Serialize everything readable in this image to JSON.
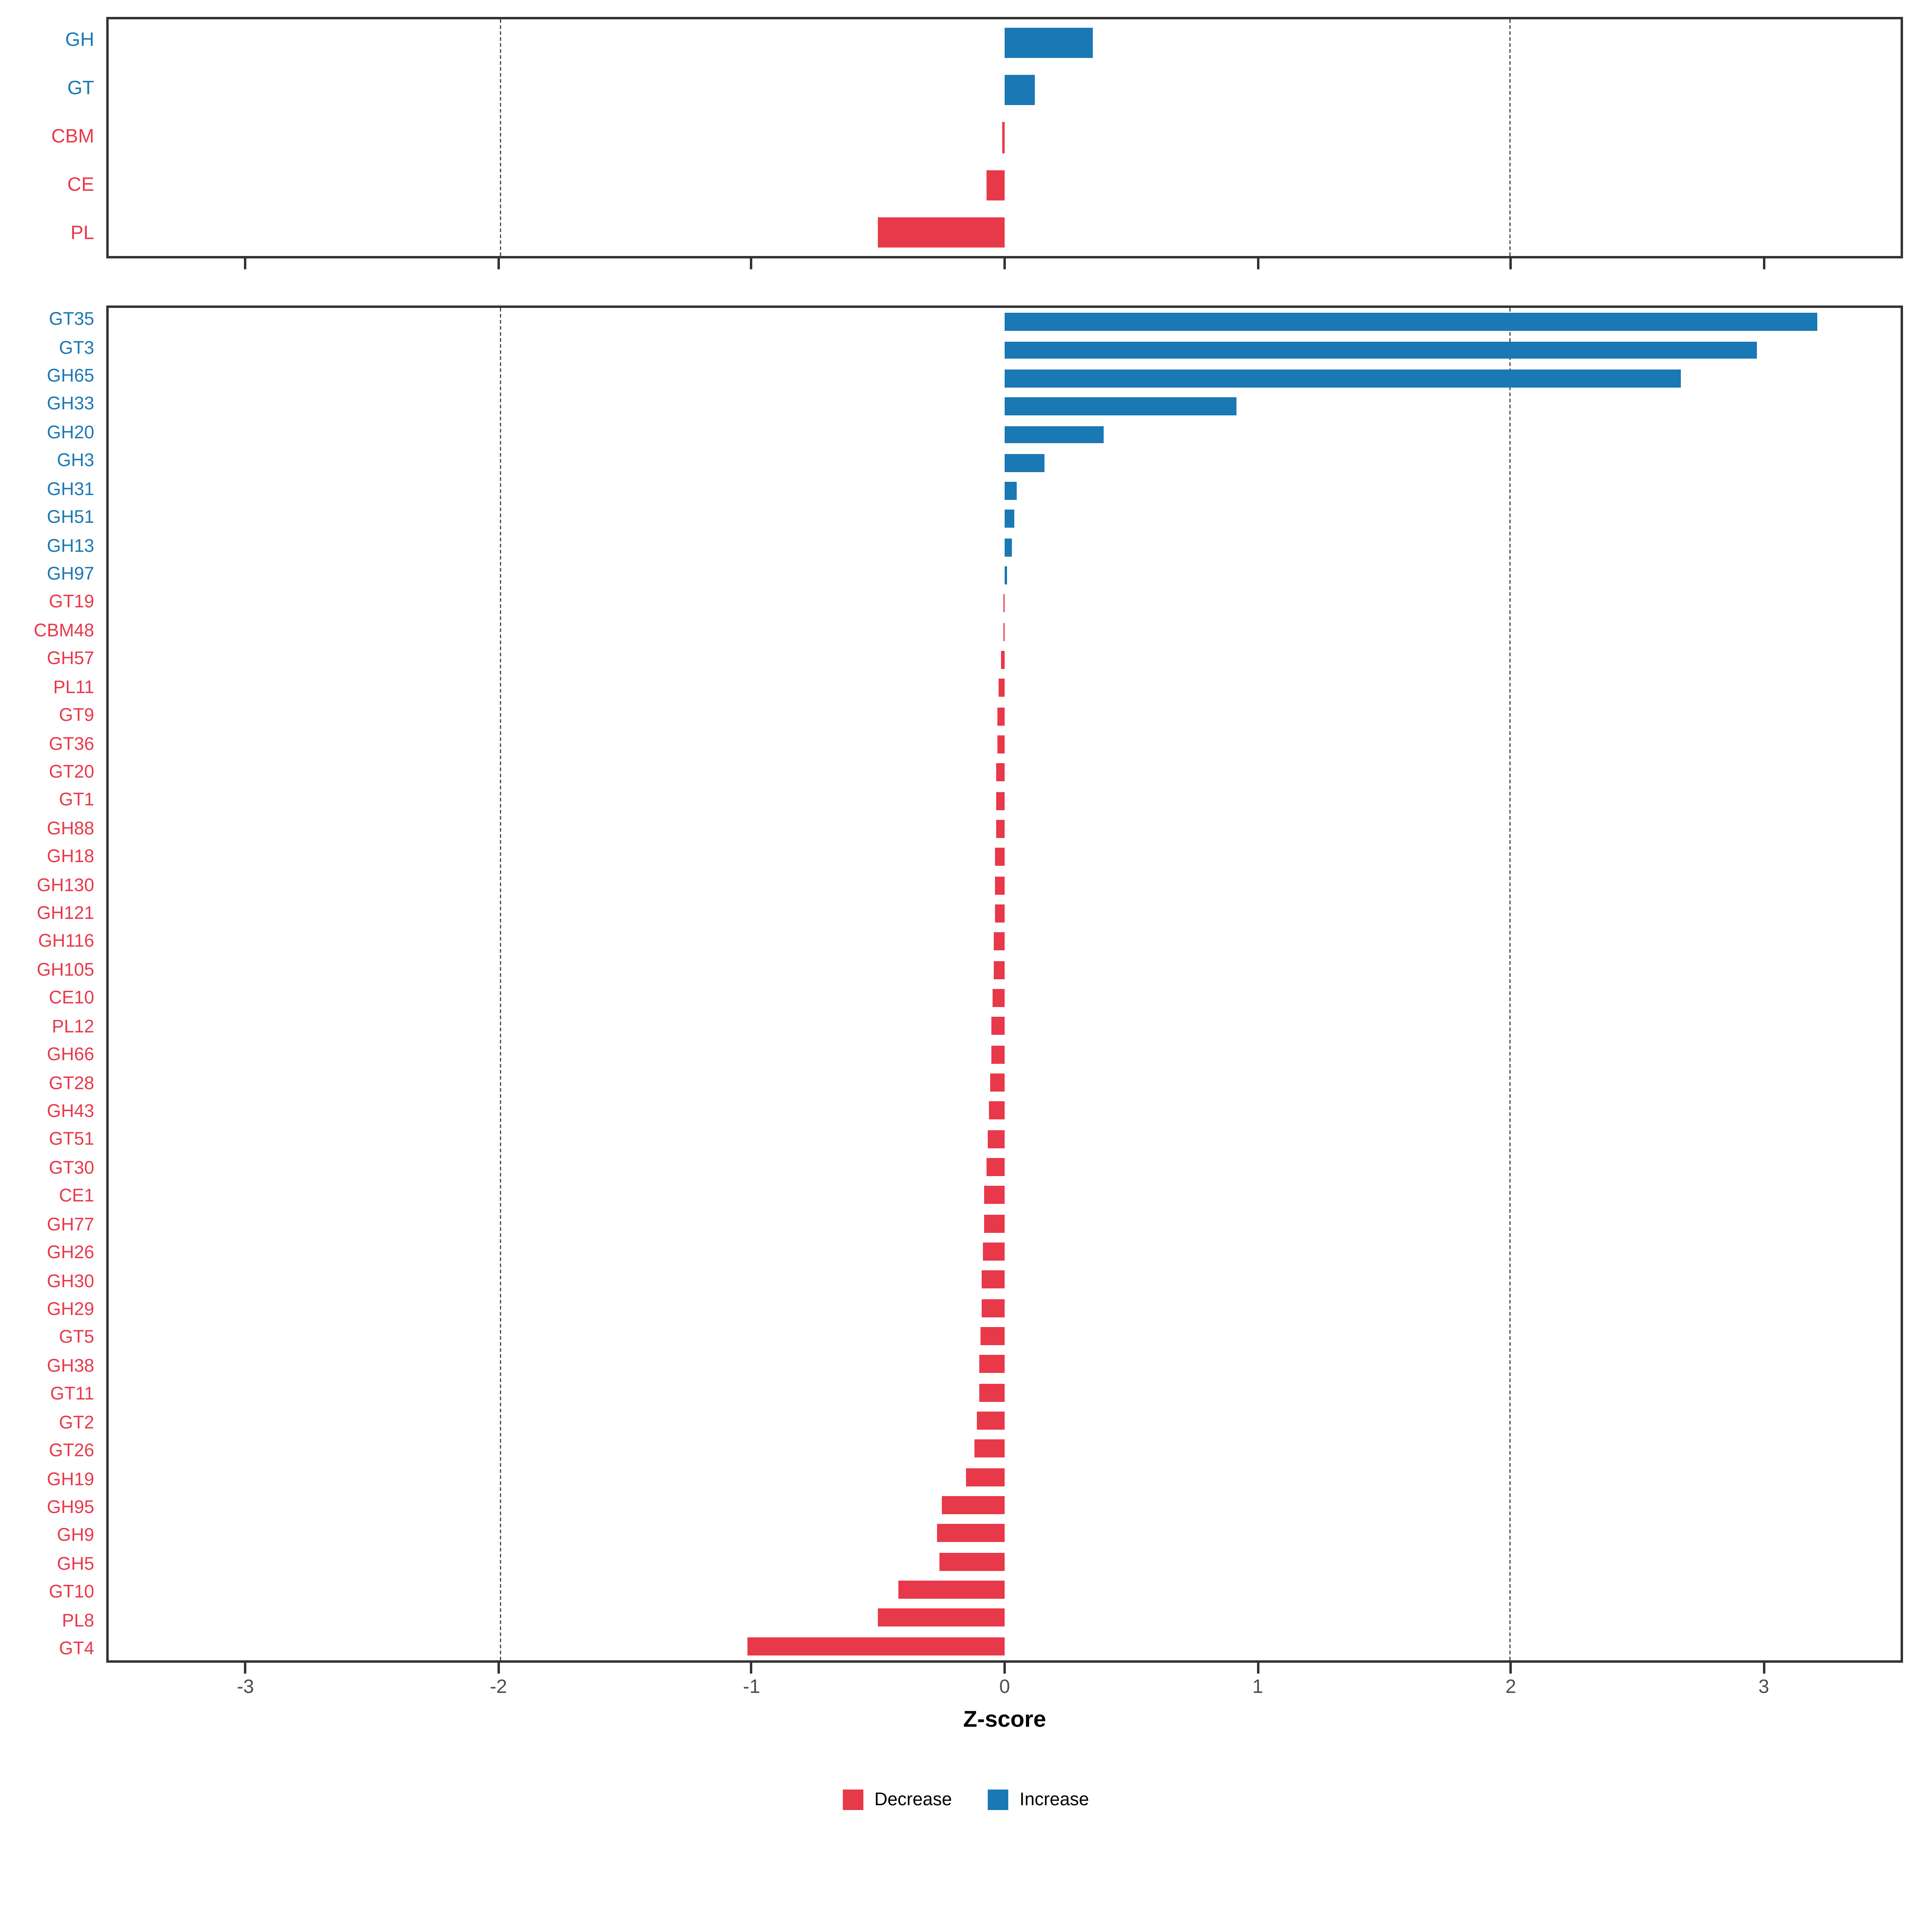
{
  "colors": {
    "decrease": "#e8394a",
    "increase": "#1a78b4",
    "axis_text": "#4d4d4d",
    "panel_border": "#333333"
  },
  "axis": {
    "xlabel": "Z-score",
    "min": -3.55,
    "max": 3.55,
    "ticks": [
      -3,
      -2,
      -1,
      0,
      1,
      2,
      3
    ],
    "gridlines": [
      -2,
      2
    ]
  },
  "legend": {
    "items": [
      {
        "label": "Decrease",
        "color": "#e8394a"
      },
      {
        "label": "Increase",
        "color": "#1a78b4"
      }
    ]
  },
  "chart_data": [
    {
      "type": "bar",
      "orientation": "horizontal",
      "title": "",
      "panel": "cazyme-class",
      "xlabel": "Z-score",
      "xlim": [
        -3.55,
        3.55
      ],
      "grid": "dashed at -2 and 2",
      "legend_position": "bottom",
      "items": [
        {
          "label": "GH",
          "value": 0.35
        },
        {
          "label": "GT",
          "value": 0.12
        },
        {
          "label": "CBM",
          "value": -0.01
        },
        {
          "label": "CE",
          "value": -0.07
        },
        {
          "label": "PL",
          "value": -0.5
        }
      ]
    },
    {
      "type": "bar",
      "orientation": "horizontal",
      "title": "",
      "panel": "cazyme-family",
      "xlabel": "Z-score",
      "xlim": [
        -3.55,
        3.55
      ],
      "grid": "dashed at -2 and 2",
      "legend_position": "bottom",
      "items": [
        {
          "label": "GT35",
          "value": 3.22
        },
        {
          "label": "GT3",
          "value": 2.98
        },
        {
          "label": "GH65",
          "value": 2.68
        },
        {
          "label": "GH33",
          "value": 0.92
        },
        {
          "label": "GH20",
          "value": 0.39
        },
        {
          "label": "GH3",
          "value": 0.16
        },
        {
          "label": "GH31",
          "value": 0.05
        },
        {
          "label": "GH51",
          "value": 0.04
        },
        {
          "label": "GH13",
          "value": 0.03
        },
        {
          "label": "GH97",
          "value": 0.01
        },
        {
          "label": "GT19",
          "value": -0.003
        },
        {
          "label": "CBM48",
          "value": -0.006
        },
        {
          "label": "GH57",
          "value": -0.015
        },
        {
          "label": "PL11",
          "value": -0.025
        },
        {
          "label": "GT9",
          "value": -0.028
        },
        {
          "label": "GT36",
          "value": -0.03
        },
        {
          "label": "GT20",
          "value": -0.032
        },
        {
          "label": "GT1",
          "value": -0.035
        },
        {
          "label": "GH88",
          "value": -0.035
        },
        {
          "label": "GH18",
          "value": -0.038
        },
        {
          "label": "GH130",
          "value": -0.04
        },
        {
          "label": "GH121",
          "value": -0.04
        },
        {
          "label": "GH116",
          "value": -0.042
        },
        {
          "label": "GH105",
          "value": -0.045
        },
        {
          "label": "CE10",
          "value": -0.05
        },
        {
          "label": "PL12",
          "value": -0.052
        },
        {
          "label": "GH66",
          "value": -0.055
        },
        {
          "label": "GT28",
          "value": -0.058
        },
        {
          "label": "GH43",
          "value": -0.06
        },
        {
          "label": "GT51",
          "value": -0.065
        },
        {
          "label": "GT30",
          "value": -0.07
        },
        {
          "label": "CE1",
          "value": -0.08
        },
        {
          "label": "GH77",
          "value": -0.08
        },
        {
          "label": "GH26",
          "value": -0.085
        },
        {
          "label": "GH30",
          "value": -0.09
        },
        {
          "label": "GH29",
          "value": -0.09
        },
        {
          "label": "GT5",
          "value": -0.095
        },
        {
          "label": "GH38",
          "value": -0.1
        },
        {
          "label": "GT11",
          "value": -0.1
        },
        {
          "label": "GT2",
          "value": -0.11
        },
        {
          "label": "GT26",
          "value": -0.12
        },
        {
          "label": "GH19",
          "value": -0.155
        },
        {
          "label": "GH95",
          "value": -0.25
        },
        {
          "label": "GH9",
          "value": -0.27
        },
        {
          "label": "GH5",
          "value": -0.26
        },
        {
          "label": "GT10",
          "value": -0.42
        },
        {
          "label": "PL8",
          "value": -0.5
        },
        {
          "label": "GT4",
          "value": -1.02
        }
      ]
    }
  ]
}
